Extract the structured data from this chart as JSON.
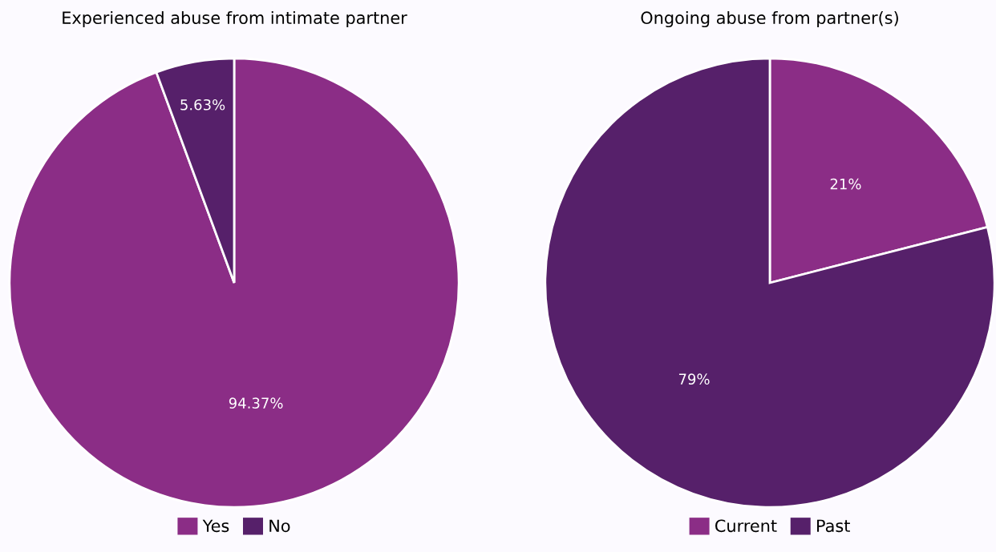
{
  "chart_data": [
    {
      "type": "pie",
      "title": "Experienced abuse from intimate partner",
      "categories": [
        "Yes",
        "No"
      ],
      "values": [
        94.37,
        5.63
      ],
      "colors": [
        "#8b2d86",
        "#56206a"
      ],
      "value_labels": [
        "94.37%",
        "5.63%"
      ],
      "legend": "bottom"
    },
    {
      "type": "pie",
      "title": "Ongoing abuse from partner(s)",
      "categories": [
        "Current",
        "Past"
      ],
      "values": [
        21,
        79
      ],
      "colors": [
        "#8b2d86",
        "#56206a"
      ],
      "value_labels": [
        "21%",
        "79%"
      ],
      "legend": "bottom"
    }
  ]
}
